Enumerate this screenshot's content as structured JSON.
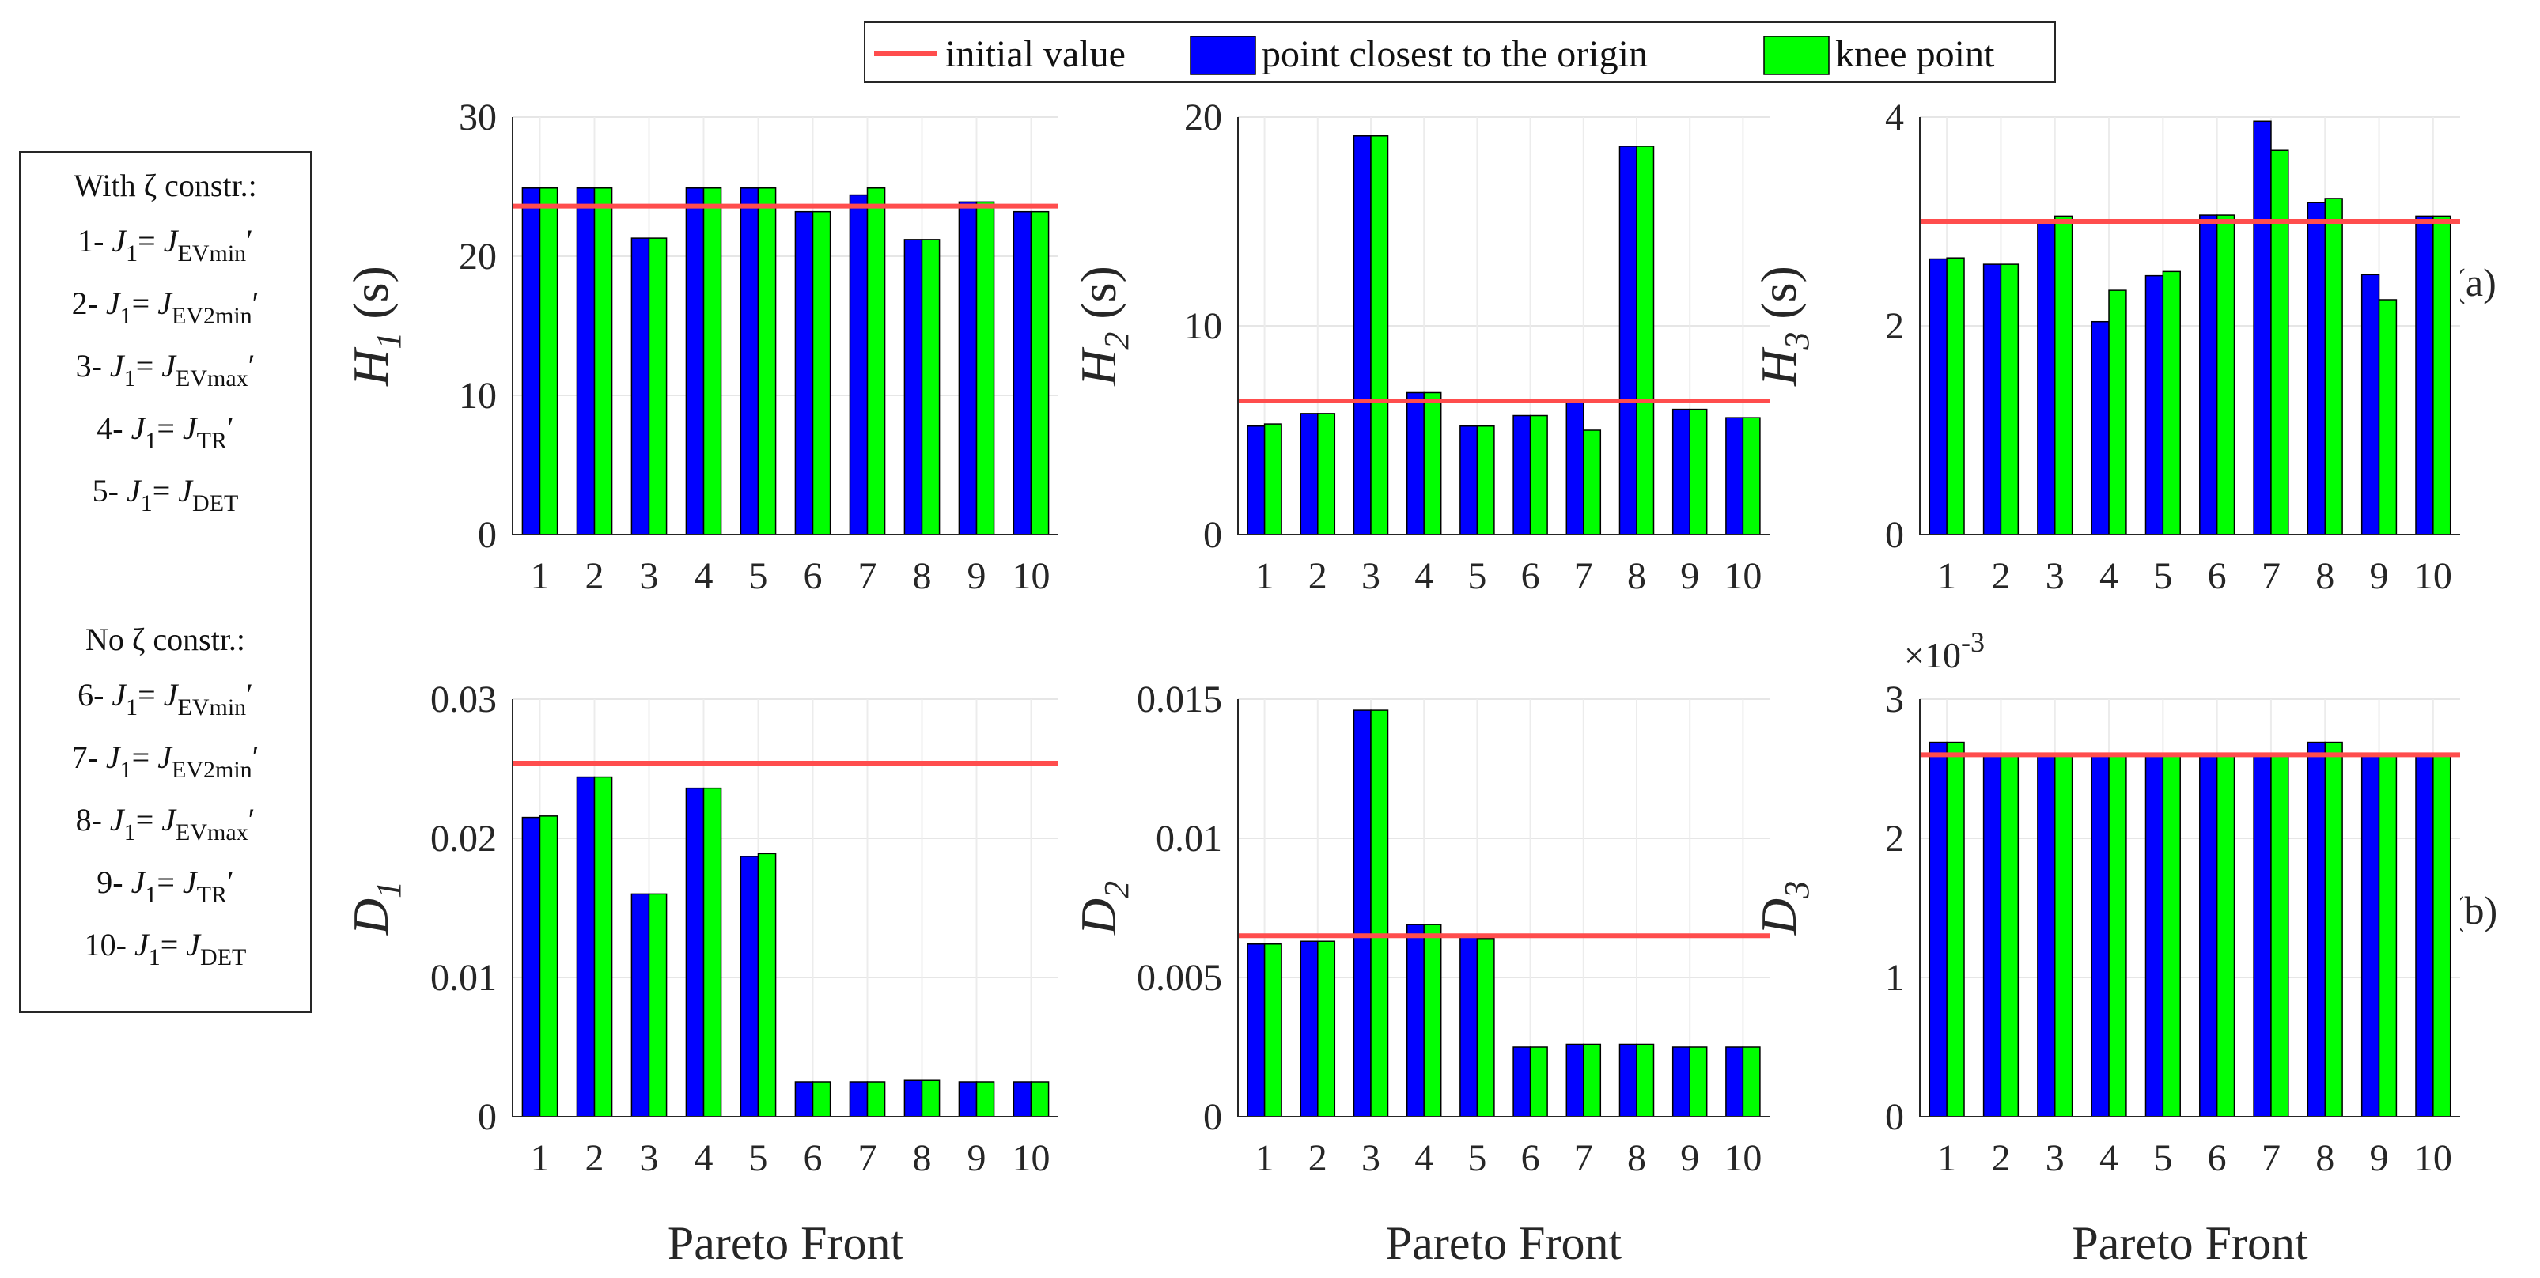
{
  "legend": {
    "initial_label": "initial value",
    "closest_label": "point closest to the origin",
    "knee_label": "knee point"
  },
  "colors": {
    "closest": "#0000ff",
    "knee": "#00ff00",
    "initial": "#ff4d4d"
  },
  "notes": {
    "with_title": "With  ζ constr.:",
    "no_title": "No  ζ constr.:",
    "j_var": "J",
    "j_sub": "1",
    "eq": "= ",
    "rhs_var": "J",
    "items": [
      {
        "num": "1- ",
        "sub": "EVmin",
        "tail": "′"
      },
      {
        "num": "2- ",
        "sub": "EV2min",
        "tail": "′"
      },
      {
        "num": "3- ",
        "sub": "EVmax",
        "tail": "′"
      },
      {
        "num": "4- ",
        "sub": "TR",
        "tail": "′"
      },
      {
        "num": "5- ",
        "sub": "DET",
        "tail": ""
      },
      {
        "num": "6- ",
        "sub": "EVmin",
        "tail": "′"
      },
      {
        "num": "7- ",
        "sub": "EV2min",
        "tail": "′"
      },
      {
        "num": "8- ",
        "sub": "EVmax",
        "tail": "′"
      },
      {
        "num": "9- ",
        "sub": "TR",
        "tail": "′"
      },
      {
        "num": "10- ",
        "sub": "DET",
        "tail": ""
      }
    ]
  },
  "panel_tags": {
    "top": "(a)",
    "bottom": "(b)"
  },
  "chart_data": [
    {
      "id": "H1",
      "type": "bar",
      "title": "",
      "xlabel": "",
      "ylabel": "H",
      "ylabel_sub": "1",
      "ylabel_unit": " (s)",
      "categories": [
        "1",
        "2",
        "3",
        "4",
        "5",
        "6",
        "7",
        "8",
        "9",
        "10"
      ],
      "ylim": [
        0,
        30
      ],
      "yticks": [
        "0",
        "10",
        "20",
        "30"
      ],
      "ytick_values": [
        0,
        10,
        20,
        30
      ],
      "exponent": "",
      "series": [
        {
          "name": "point closest to the origin",
          "values": [
            24.9,
            24.9,
            21.3,
            24.9,
            24.9,
            23.2,
            24.4,
            21.2,
            23.9,
            23.2
          ]
        },
        {
          "name": "knee point",
          "values": [
            24.9,
            24.9,
            21.3,
            24.9,
            24.9,
            23.2,
            24.9,
            21.2,
            23.9,
            23.2
          ]
        }
      ],
      "reference": {
        "name": "initial value",
        "value": 23.6
      }
    },
    {
      "id": "H2",
      "type": "bar",
      "title": "",
      "xlabel": "",
      "ylabel": "H",
      "ylabel_sub": "2",
      "ylabel_unit": " (s)",
      "categories": [
        "1",
        "2",
        "3",
        "4",
        "5",
        "6",
        "7",
        "8",
        "9",
        "10"
      ],
      "ylim": [
        0,
        20
      ],
      "yticks": [
        "0",
        "10",
        "20"
      ],
      "ytick_values": [
        0,
        10,
        20
      ],
      "exponent": "",
      "series": [
        {
          "name": "point closest to the origin",
          "values": [
            5.2,
            5.8,
            19.1,
            6.8,
            5.2,
            5.7,
            6.4,
            18.6,
            6.0,
            5.6
          ]
        },
        {
          "name": "knee point",
          "values": [
            5.3,
            5.8,
            19.1,
            6.8,
            5.2,
            5.7,
            5.0,
            18.6,
            6.0,
            5.6
          ]
        }
      ],
      "reference": {
        "name": "initial value",
        "value": 6.4
      }
    },
    {
      "id": "H3",
      "type": "bar",
      "title": "",
      "xlabel": "",
      "ylabel": "H",
      "ylabel_sub": "3",
      "ylabel_unit": " (s)",
      "categories": [
        "1",
        "2",
        "3",
        "4",
        "5",
        "6",
        "7",
        "8",
        "9",
        "10"
      ],
      "ylim": [
        0,
        4
      ],
      "yticks": [
        "0",
        "2",
        "4"
      ],
      "ytick_values": [
        0,
        2,
        4
      ],
      "exponent": "",
      "series": [
        {
          "name": "point closest to the origin",
          "values": [
            2.64,
            2.59,
            2.99,
            2.04,
            2.48,
            3.06,
            3.96,
            3.18,
            2.49,
            3.05
          ]
        },
        {
          "name": "knee point",
          "values": [
            2.65,
            2.59,
            3.05,
            2.34,
            2.52,
            3.06,
            3.68,
            3.22,
            2.25,
            3.05
          ]
        }
      ],
      "reference": {
        "name": "initial value",
        "value": 3.0
      }
    },
    {
      "id": "D1",
      "type": "bar",
      "title": "",
      "xlabel": "Pareto Front",
      "ylabel": "D",
      "ylabel_sub": "1",
      "ylabel_unit": "",
      "categories": [
        "1",
        "2",
        "3",
        "4",
        "5",
        "6",
        "7",
        "8",
        "9",
        "10"
      ],
      "ylim": [
        0,
        0.03
      ],
      "yticks": [
        "0",
        "0.01",
        "0.02",
        "0.03"
      ],
      "ytick_values": [
        0,
        0.01,
        0.02,
        0.03
      ],
      "exponent": "",
      "series": [
        {
          "name": "point closest to the origin",
          "values": [
            0.0215,
            0.0244,
            0.016,
            0.0236,
            0.0187,
            0.0025,
            0.0025,
            0.0026,
            0.0025,
            0.0025
          ]
        },
        {
          "name": "knee point",
          "values": [
            0.0216,
            0.0244,
            0.016,
            0.0236,
            0.0189,
            0.0025,
            0.0025,
            0.0026,
            0.0025,
            0.0025
          ]
        }
      ],
      "reference": {
        "name": "initial value",
        "value": 0.0254
      }
    },
    {
      "id": "D2",
      "type": "bar",
      "title": "",
      "xlabel": "Pareto Front",
      "ylabel": "D",
      "ylabel_sub": "2",
      "ylabel_unit": "",
      "categories": [
        "1",
        "2",
        "3",
        "4",
        "5",
        "6",
        "7",
        "8",
        "9",
        "10"
      ],
      "ylim": [
        0,
        0.015
      ],
      "yticks": [
        "0",
        "0.005",
        "0.01",
        "0.015"
      ],
      "ytick_values": [
        0,
        0.005,
        0.01,
        0.015
      ],
      "exponent": "",
      "series": [
        {
          "name": "point closest to the origin",
          "values": [
            0.0062,
            0.0063,
            0.0146,
            0.0069,
            0.0065,
            0.0025,
            0.0026,
            0.0026,
            0.0025,
            0.0025
          ]
        },
        {
          "name": "knee point",
          "values": [
            0.0062,
            0.0063,
            0.0146,
            0.0069,
            0.0064,
            0.0025,
            0.0026,
            0.0026,
            0.0025,
            0.0025
          ]
        }
      ],
      "reference": {
        "name": "initial value",
        "value": 0.0065
      }
    },
    {
      "id": "D3",
      "type": "bar",
      "title": "",
      "xlabel": "Pareto Front",
      "ylabel": "D",
      "ylabel_sub": "3",
      "ylabel_unit": "",
      "categories": [
        "1",
        "2",
        "3",
        "4",
        "5",
        "6",
        "7",
        "8",
        "9",
        "10"
      ],
      "ylim": [
        0,
        3
      ],
      "yticks": [
        "0",
        "1",
        "2",
        "3"
      ],
      "ytick_values": [
        0,
        1,
        2,
        3
      ],
      "exponent": "×10-3",
      "series": [
        {
          "name": "point closest to the origin",
          "values": [
            2.69,
            2.6,
            2.6,
            2.6,
            2.6,
            2.6,
            2.6,
            2.69,
            2.6,
            2.6
          ]
        },
        {
          "name": "knee point",
          "values": [
            2.69,
            2.6,
            2.6,
            2.6,
            2.6,
            2.6,
            2.6,
            2.69,
            2.6,
            2.6
          ]
        }
      ],
      "reference": {
        "name": "initial value",
        "value": 2.6
      }
    }
  ]
}
